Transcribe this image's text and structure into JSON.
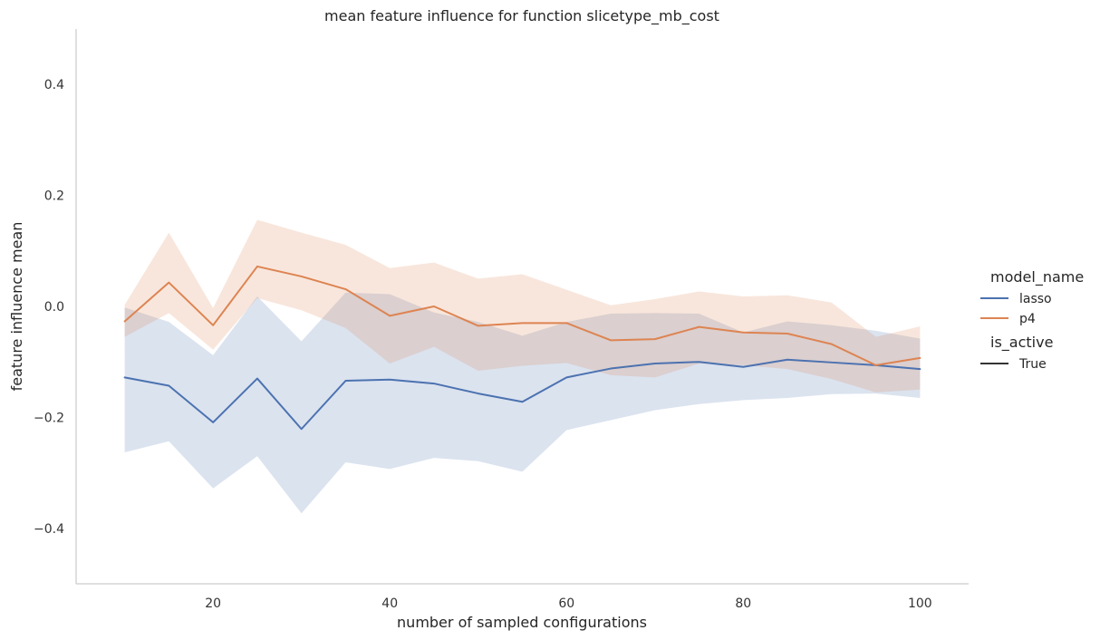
{
  "chart_data": {
    "type": "line",
    "title": "mean feature influence for function slicetype_mb_cost",
    "xlabel": "number of sampled configurations",
    "ylabel": "feature influence mean",
    "xlim": [
      4.5,
      105.5
    ],
    "ylim": [
      -0.5,
      0.5
    ],
    "xticks": [
      20,
      40,
      60,
      80,
      100
    ],
    "xtick_labels": [
      "20",
      "40",
      "60",
      "80",
      "100"
    ],
    "yticks": [
      -0.4,
      -0.2,
      0.0,
      0.2,
      0.4
    ],
    "ytick_labels": [
      "−0.4",
      "−0.2",
      "0.0",
      "0.2",
      "0.4"
    ],
    "grid": false,
    "legend_placement": "right",
    "legend": {
      "title_hue": "model_name",
      "title_style": "is_active",
      "style_entry": "True",
      "style_color": "#333333"
    },
    "x": [
      10,
      15,
      20,
      25,
      30,
      35,
      40,
      45,
      50,
      55,
      60,
      65,
      70,
      75,
      80,
      85,
      90,
      95,
      100
    ],
    "series": [
      {
        "name": "lasso",
        "color": "#4c72b0",
        "values": [
          -0.128,
          -0.143,
          -0.209,
          -0.13,
          -0.221,
          -0.134,
          -0.132,
          -0.139,
          -0.157,
          -0.172,
          -0.128,
          -0.112,
          -0.103,
          -0.1,
          -0.109,
          -0.096,
          -0.101,
          -0.106,
          -0.113
        ],
        "ci_low": [
          -0.263,
          -0.243,
          -0.328,
          -0.27,
          -0.373,
          -0.281,
          -0.293,
          -0.273,
          -0.279,
          -0.298,
          -0.223,
          -0.205,
          -0.187,
          -0.176,
          -0.169,
          -0.165,
          -0.158,
          -0.157,
          -0.165
        ],
        "ci_high": [
          -0.002,
          -0.028,
          -0.088,
          0.018,
          -0.063,
          0.025,
          0.022,
          -0.011,
          -0.028,
          -0.053,
          -0.028,
          -0.013,
          -0.012,
          -0.013,
          -0.047,
          -0.027,
          -0.034,
          -0.044,
          -0.058
        ]
      },
      {
        "name": "p4",
        "color": "#dd8452",
        "values": [
          -0.027,
          0.043,
          -0.034,
          0.072,
          0.054,
          0.031,
          -0.017,
          0.0,
          -0.035,
          -0.03,
          -0.03,
          -0.061,
          -0.059,
          -0.037,
          -0.047,
          -0.049,
          -0.068,
          -0.106,
          -0.093
        ],
        "ci_low": [
          -0.055,
          -0.012,
          -0.078,
          0.015,
          -0.007,
          -0.039,
          -0.103,
          -0.073,
          -0.116,
          -0.107,
          -0.102,
          -0.124,
          -0.128,
          -0.103,
          -0.106,
          -0.113,
          -0.131,
          -0.155,
          -0.15
        ],
        "ci_high": [
          0.003,
          0.133,
          -0.003,
          0.156,
          0.133,
          0.111,
          0.069,
          0.079,
          0.05,
          0.058,
          0.03,
          0.002,
          0.013,
          0.027,
          0.018,
          0.02,
          0.007,
          -0.055,
          -0.036
        ]
      }
    ]
  }
}
